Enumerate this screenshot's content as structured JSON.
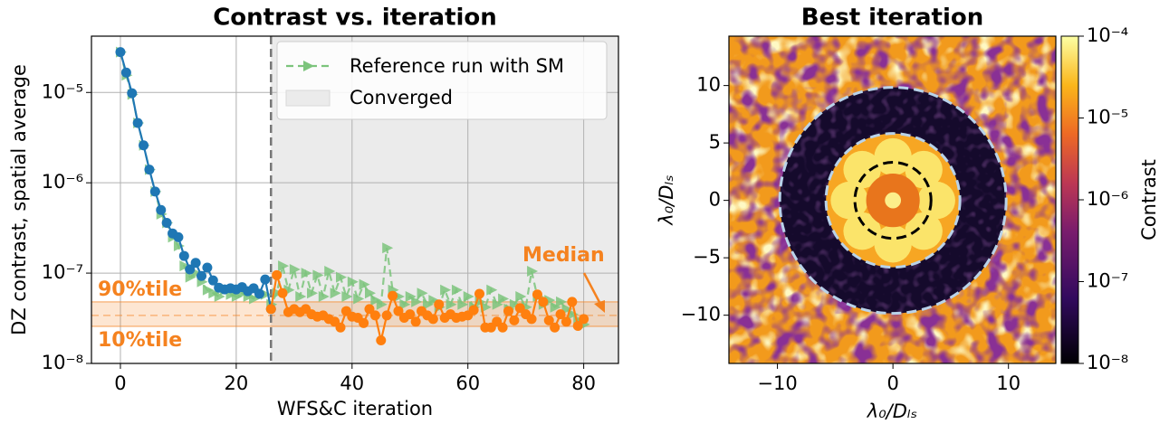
{
  "chart_data": [
    {
      "type": "line",
      "title": "Contrast vs. iteration",
      "xlabel": "WFS&C iteration",
      "ylabel": "DZ contrast, spatial average",
      "log_y": true,
      "grid": true,
      "xlim": [
        -5,
        86
      ],
      "xticks": [
        0,
        20,
        40,
        60,
        80
      ],
      "ylim": [
        1e-08,
        4.2e-05
      ],
      "yticks": [
        {
          "value": 1e-08,
          "label": "10⁻⁸"
        },
        {
          "value": 1e-07,
          "label": "10⁻⁷"
        },
        {
          "value": 1e-06,
          "label": "10⁻⁶"
        },
        {
          "value": 1e-05,
          "label": "10⁻⁵"
        }
      ],
      "shaded_region": {
        "label": "Converged",
        "x": 26,
        "color": "#ebebeb"
      },
      "percentiles": {
        "color": "#f5821f",
        "p10": 2.57e-08,
        "median": 3.4e-08,
        "p90": 4.8e-08
      },
      "annotations": [
        "90%tile",
        "10%tile",
        "Median"
      ],
      "series": [
        {
          "name": "Reference run with SM",
          "color": "#7cc47c",
          "style": "dashed",
          "marker": "triangle",
          "x": [
            0,
            1,
            2,
            3,
            4,
            5,
            6,
            7,
            8,
            9,
            10,
            11,
            12,
            13,
            14,
            15,
            16,
            17,
            18,
            19,
            20,
            21,
            22,
            23,
            24,
            25,
            26,
            27,
            28,
            29,
            30,
            31,
            32,
            33,
            34,
            35,
            36,
            37,
            38,
            39,
            40,
            41,
            42,
            43,
            44,
            45,
            46,
            47,
            48,
            49,
            50,
            51,
            52,
            53,
            54,
            55,
            56,
            57,
            58,
            59,
            60,
            61,
            62,
            63,
            64,
            65,
            66,
            67,
            68,
            69,
            70,
            71,
            72,
            73,
            74,
            75,
            76,
            77,
            78,
            79,
            80
          ],
          "values": [
            2.8e-05,
            1.55e-05,
            9.5e-06,
            4.6e-06,
            2.6e-06,
            1.4e-06,
            8e-07,
            4.5e-07,
            3.6e-07,
            2.5e-07,
            2e-07,
            1.2e-07,
            9e-08,
            1e-07,
            8e-08,
            6.5e-08,
            6e-08,
            5.5e-08,
            6.5e-08,
            5.8e-08,
            5.5e-08,
            6e-08,
            5.5e-08,
            5.2e-08,
            6.2e-08,
            5.8e-08,
            4.5e-08,
            6e-08,
            1.2e-07,
            6.5e-08,
            1.1e-07,
            5.5e-08,
            1e-07,
            6e-08,
            9.5e-08,
            5.5e-08,
            1.05e-07,
            6e-08,
            9e-08,
            5.5e-08,
            8e-08,
            5.2e-08,
            7.5e-08,
            6e-08,
            5e-08,
            4.5e-08,
            1.9e-07,
            6.5e-08,
            5.5e-08,
            4.5e-08,
            5.5e-08,
            4.8e-08,
            6e-08,
            4.5e-08,
            5e-08,
            4.2e-08,
            6.5e-08,
            4.5e-08,
            6.5e-08,
            4.5e-08,
            5.5e-08,
            4.2e-08,
            4.8e-08,
            4.2e-08,
            6.5e-08,
            4.5e-08,
            5.2e-08,
            4e-08,
            4.5e-08,
            5.5e-08,
            4.2e-08,
            1.05e-07,
            5.5e-08,
            4.5e-08,
            5e-08,
            4.2e-08,
            4.8e-08,
            4e-08,
            3.5e-08,
            3e-08,
            2.7e-08
          ]
        },
        {
          "color": "#1f77b4",
          "style": "solid",
          "marker": "circle",
          "x": [
            0,
            1,
            2,
            3,
            4,
            5,
            6,
            7,
            8,
            9,
            10,
            11,
            12,
            13,
            14,
            15,
            16,
            17,
            18,
            19,
            20,
            21,
            22,
            23,
            24,
            25,
            26
          ],
          "values": [
            2.8e-05,
            1.66e-05,
            9.8e-06,
            4.6e-06,
            2.6e-06,
            1.4e-06,
            8e-07,
            5e-07,
            3.6e-07,
            2.75e-07,
            2.5e-07,
            1.55e-07,
            1.1e-07,
            1.3e-07,
            9.3e-08,
            1.15e-07,
            8.3e-08,
            6.9e-08,
            6.6e-08,
            6.8e-08,
            6.6e-08,
            7e-08,
            6.3e-08,
            6.8e-08,
            5.9e-08,
            8.5e-08,
            4e-08
          ]
        },
        {
          "color": "#ff7f0e",
          "style": "solid",
          "marker": "circle",
          "x": [
            26,
            27,
            28,
            29,
            30,
            31,
            32,
            33,
            34,
            35,
            36,
            37,
            38,
            39,
            40,
            41,
            42,
            43,
            44,
            45,
            46,
            47,
            48,
            49,
            50,
            51,
            52,
            53,
            54,
            55,
            56,
            57,
            58,
            59,
            60,
            61,
            62,
            63,
            64,
            65,
            66,
            67,
            68,
            69,
            70,
            71,
            72,
            73,
            74,
            75,
            76,
            77,
            78,
            79,
            80
          ],
          "values": [
            4e-08,
            9.5e-08,
            6e-08,
            3.7e-08,
            4e-08,
            3.7e-08,
            4e-08,
            3.5e-08,
            3.3e-08,
            3.4e-08,
            3.1e-08,
            2.9e-08,
            2.5e-08,
            3.8e-08,
            3.3e-08,
            3.2e-08,
            2.8e-08,
            4e-08,
            3.4e-08,
            1.8e-08,
            3.4e-08,
            5.6e-08,
            3.8e-08,
            3.2e-08,
            3.5e-08,
            2.9e-08,
            3.8e-08,
            3.4e-08,
            3.1e-08,
            4.5e-08,
            3.2e-08,
            3.5e-08,
            3.2e-08,
            3.3e-08,
            3.4e-08,
            3.9e-08,
            5.9e-08,
            2.5e-08,
            2.5e-08,
            2.9e-08,
            2.5e-08,
            3.8e-08,
            3e-08,
            4.1e-08,
            3.5e-08,
            3.1e-08,
            5.8e-08,
            4.8e-08,
            3e-08,
            2.5e-08,
            3.5e-08,
            2.9e-08,
            4.8e-08,
            2.6e-08,
            3.1e-08
          ]
        }
      ]
    },
    {
      "type": "heatmap",
      "title": "Best iteration",
      "xlabel": "λ₀/Dₗₛ",
      "ylabel": "λ₀/Dₗₛ",
      "xlim": [
        -14.2,
        14.1
      ],
      "ylim": [
        -14.2,
        14.3
      ],
      "xticks": [
        {
          "value": -10,
          "label": "−10"
        },
        0,
        10
      ],
      "yticks": [
        {
          "value": -10,
          "label": "−10"
        },
        {
          "value": -5,
          "label": "−5"
        },
        0,
        5,
        10
      ],
      "circles": [
        {
          "radius": 3.3,
          "color": "#000000"
        },
        {
          "radius": 5.8,
          "color": "#b9d3ea"
        },
        {
          "radius": 9.8,
          "color": "#b9d3ea"
        }
      ],
      "colorbar": {
        "label": "Contrast",
        "log": true,
        "clim": [
          1e-08,
          0.0001
        ],
        "ticks": [
          {
            "value": 1e-08,
            "label": "10⁻⁸"
          },
          {
            "value": 1e-07,
            "label": "10⁻⁷"
          },
          {
            "value": 1e-06,
            "label": "10⁻⁶"
          },
          {
            "value": 1e-05,
            "label": "10⁻⁵"
          },
          {
            "value": 0.0001,
            "label": "10⁻⁴"
          }
        ]
      }
    }
  ]
}
